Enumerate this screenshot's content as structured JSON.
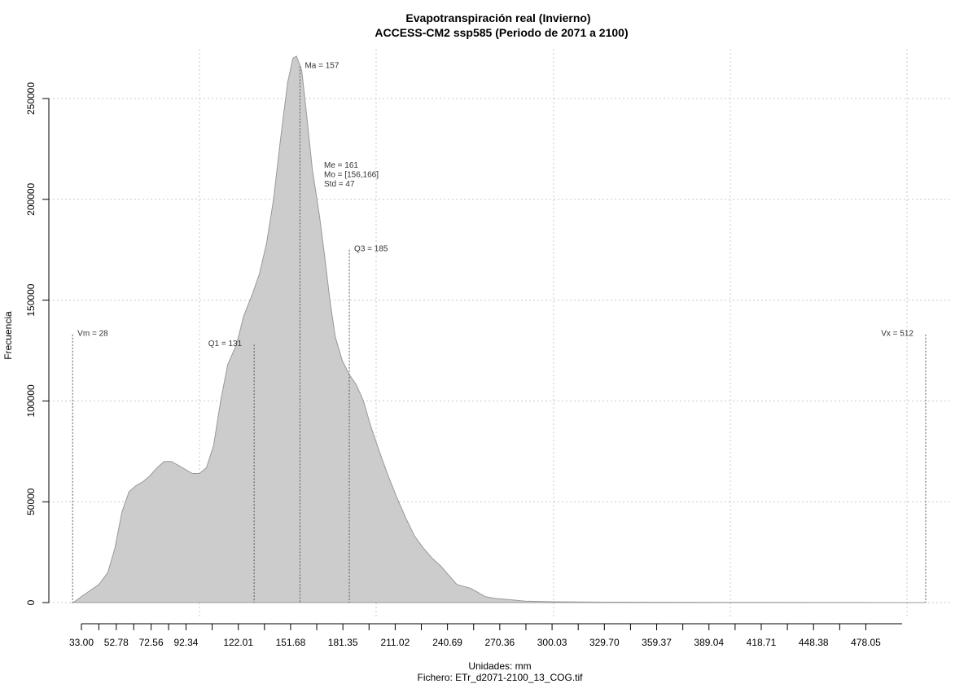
{
  "chart_data": {
    "type": "area",
    "title": "Evapotranspiración real (Invierno)",
    "subtitle": "ACCESS-CM2 ssp585 (Periodo de 2071 a 2100)",
    "xlabel": "Unidades: mm",
    "ylabel": "Frecuencia",
    "footer": "Fichero: ETr_d2071-2100_13_COG.tif",
    "xlim": [
      33.0,
      512
    ],
    "ylim": [
      0,
      250000
    ],
    "grid": true,
    "fill_color": "#cccccc",
    "line_color": "#999999",
    "x_ticks": [
      33.0,
      52.78,
      72.56,
      92.34,
      122.01,
      151.68,
      181.35,
      211.02,
      240.69,
      270.36,
      300.03,
      329.7,
      359.37,
      389.04,
      418.71,
      448.38,
      478.05
    ],
    "x_tick_labels": [
      "33.00",
      "52.78",
      "72.56",
      "92.34",
      "122.01",
      "151.68",
      "181.35",
      "211.02",
      "240.69",
      "270.36",
      "300.03",
      "329.70",
      "359.37",
      "389.04",
      "418.71",
      "448.38",
      "478.05"
    ],
    "y_ticks": [
      0,
      50000,
      100000,
      150000,
      200000,
      250000
    ],
    "y_tick_labels": [
      "0",
      "50000",
      "100000",
      "150000",
      "200000",
      "250000"
    ],
    "density": [
      [
        28,
        0
      ],
      [
        30,
        1000
      ],
      [
        33,
        3000
      ],
      [
        38,
        6000
      ],
      [
        43,
        9000
      ],
      [
        48,
        15000
      ],
      [
        52,
        27000
      ],
      [
        56,
        45000
      ],
      [
        60,
        55000
      ],
      [
        64,
        58000
      ],
      [
        68,
        60000
      ],
      [
        72,
        63000
      ],
      [
        76,
        67000
      ],
      [
        80,
        70000
      ],
      [
        84,
        70000
      ],
      [
        88,
        68000
      ],
      [
        92,
        66000
      ],
      [
        96,
        64000
      ],
      [
        100,
        64000
      ],
      [
        104,
        67000
      ],
      [
        108,
        78000
      ],
      [
        112,
        100000
      ],
      [
        116,
        118000
      ],
      [
        121,
        128000
      ],
      [
        125,
        142000
      ],
      [
        130,
        153000
      ],
      [
        134,
        163000
      ],
      [
        138,
        178000
      ],
      [
        142,
        200000
      ],
      [
        146,
        230000
      ],
      [
        150,
        258000
      ],
      [
        153,
        270000
      ],
      [
        155,
        271000
      ],
      [
        158,
        264000
      ],
      [
        161,
        240000
      ],
      [
        164,
        215000
      ],
      [
        168,
        192000
      ],
      [
        171,
        172000
      ],
      [
        174,
        150000
      ],
      [
        177,
        132000
      ],
      [
        181,
        120000
      ],
      [
        185,
        113000
      ],
      [
        189,
        108000
      ],
      [
        193,
        100000
      ],
      [
        197,
        88000
      ],
      [
        202,
        75000
      ],
      [
        207,
        63000
      ],
      [
        212,
        52000
      ],
      [
        217,
        42000
      ],
      [
        222,
        33000
      ],
      [
        227,
        27000
      ],
      [
        232,
        22000
      ],
      [
        237,
        18000
      ],
      [
        242,
        13000
      ],
      [
        246,
        9000
      ],
      [
        250,
        8000
      ],
      [
        254,
        7000
      ],
      [
        258,
        5000
      ],
      [
        262,
        3000
      ],
      [
        268,
        2000
      ],
      [
        275,
        1500
      ],
      [
        285,
        700
      ],
      [
        300,
        400
      ],
      [
        330,
        200
      ],
      [
        370,
        150
      ],
      [
        420,
        100
      ],
      [
        470,
        60
      ],
      [
        500,
        20
      ],
      [
        512,
        0
      ]
    ],
    "markers": [
      {
        "label": "Vm = 28",
        "x": 28,
        "y_top": 133000,
        "align": "start"
      },
      {
        "label": "Q1 = 131",
        "x": 131,
        "y_top": 128000,
        "align": "end"
      },
      {
        "label": "Ma = 157",
        "x": 157,
        "y_top": 266000,
        "align": "start"
      },
      {
        "label": "Q3 = 185",
        "x": 185,
        "y_top": 175000,
        "align": "start"
      },
      {
        "label": "Vx = 512",
        "x": 512,
        "y_top": 133000,
        "align": "end"
      }
    ],
    "stats": [
      "Me = 161",
      "Mo = [156,166]",
      "Std = 47"
    ]
  }
}
